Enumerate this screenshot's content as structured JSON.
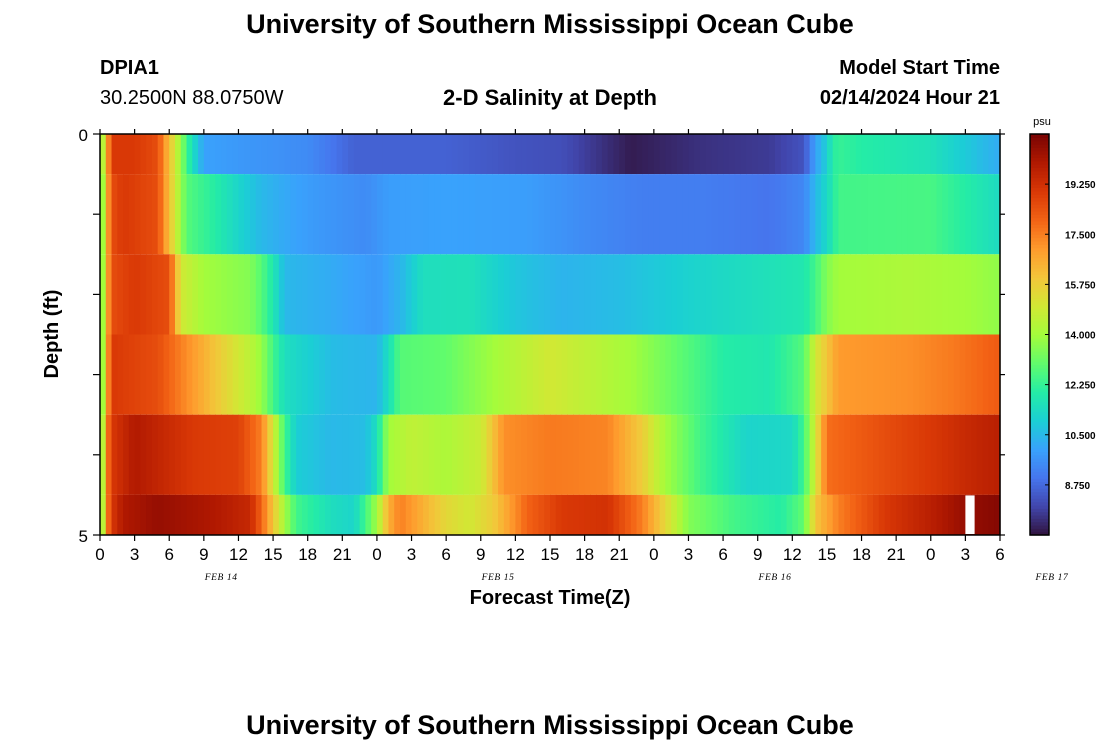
{
  "header": {
    "title": "University of Southern Mississippi Ocean Cube",
    "station": "DPIA1",
    "coords": "30.2500N  88.0750W",
    "subtitle": "2-D Salinity at Depth",
    "model_label": "Model Start Time",
    "model_time": "02/14/2024 Hour 21"
  },
  "footer": {
    "title": "University of Southern Mississippi Ocean Cube"
  },
  "chart_data": {
    "type": "heatmap",
    "title": "2-D Salinity at Depth",
    "xlabel": "Forecast Time(Z)",
    "ylabel": "Depth (ft)",
    "colorbar_unit": "psu",
    "colorbar_ticks": [
      "19.250",
      "17.500",
      "15.750",
      "14.000",
      "12.250",
      "10.500",
      "8.750"
    ],
    "colorbar_tick_values": [
      19.25,
      17.5,
      15.75,
      14.0,
      12.25,
      10.5,
      8.75
    ],
    "colorbar_range": [
      7.0,
      21.0
    ],
    "y_tick_labels": [
      "0",
      "5"
    ],
    "ylim": [
      0,
      5
    ],
    "x_tick_labels": [
      "0",
      "3",
      "6",
      "9",
      "12",
      "15",
      "18",
      "21",
      "0",
      "3",
      "6",
      "9",
      "12",
      "15",
      "18",
      "21",
      "0",
      "3",
      "6",
      "9",
      "12",
      "15",
      "18",
      "21",
      "0",
      "3",
      "6"
    ],
    "date_labels": [
      "FEB 14",
      "FEB 15",
      "FEB 16",
      "FEB 17"
    ],
    "x_hours_range": [
      0,
      78
    ],
    "colormap": [
      "#30123b",
      "#4145ab",
      "#4675ed",
      "#39a2fc",
      "#1bcfd4",
      "#24eca6",
      "#61fc6c",
      "#a4fc3b",
      "#d1e834",
      "#f3c63a",
      "#fe9b2d",
      "#f36315",
      "#d93806",
      "#b11901",
      "#7a0403"
    ],
    "rows": [
      {
        "depth_top": 0.0,
        "depth_bottom": 0.5,
        "knots": [
          [
            0,
            13
          ],
          [
            1,
            19
          ],
          [
            3,
            19
          ],
          [
            5,
            18.5
          ],
          [
            6.5,
            15
          ],
          [
            7.5,
            12.5
          ],
          [
            8,
            11.5
          ],
          [
            9,
            10
          ],
          [
            12,
            9.8
          ],
          [
            18,
            9.5
          ],
          [
            22,
            8.6
          ],
          [
            30,
            8.6
          ],
          [
            36,
            8.3
          ],
          [
            40,
            8.2
          ],
          [
            46,
            7.2
          ],
          [
            52,
            7.6
          ],
          [
            58,
            7.8
          ],
          [
            61,
            8.3
          ],
          [
            62,
            10
          ],
          [
            63,
            11
          ],
          [
            63.5,
            12
          ],
          [
            64,
            12.3
          ],
          [
            66,
            12
          ],
          [
            72,
            11.6
          ],
          [
            78,
            10.2
          ]
        ]
      },
      {
        "depth_top": 0.5,
        "depth_bottom": 1.5,
        "knots": [
          [
            0,
            12
          ],
          [
            0.5,
            16
          ],
          [
            1,
            18.5
          ],
          [
            2,
            19
          ],
          [
            5,
            18.5
          ],
          [
            6.5,
            15
          ],
          [
            7.5,
            12.8
          ],
          [
            10,
            12
          ],
          [
            12,
            11.2
          ],
          [
            14,
            10.5
          ],
          [
            17,
            10
          ],
          [
            19,
            9.8
          ],
          [
            23,
            9.5
          ],
          [
            25,
            9.9
          ],
          [
            30,
            10
          ],
          [
            37,
            9.9
          ],
          [
            42,
            9.5
          ],
          [
            47,
            9.2
          ],
          [
            52,
            9.2
          ],
          [
            58,
            9.0
          ],
          [
            61,
            9.4
          ],
          [
            62,
            10.5
          ],
          [
            63,
            11.3
          ],
          [
            64,
            12.5
          ],
          [
            72,
            12.6
          ],
          [
            76,
            11.8
          ],
          [
            78,
            11.4
          ]
        ]
      },
      {
        "depth_top": 1.5,
        "depth_bottom": 2.5,
        "knots": [
          [
            0,
            12
          ],
          [
            0.5,
            16
          ],
          [
            1,
            18.5
          ],
          [
            3,
            19
          ],
          [
            6,
            18.5
          ],
          [
            7,
            15
          ],
          [
            9,
            14
          ],
          [
            13,
            13.5
          ],
          [
            14,
            12.8
          ],
          [
            15,
            11.8
          ],
          [
            16,
            10.5
          ],
          [
            20,
            10.2
          ],
          [
            24,
            9.8
          ],
          [
            26,
            10.4
          ],
          [
            28,
            11.5
          ],
          [
            32,
            11.6
          ],
          [
            36,
            10.8
          ],
          [
            40,
            10.4
          ],
          [
            45,
            10.6
          ],
          [
            52,
            11.2
          ],
          [
            58,
            11.6
          ],
          [
            61,
            11.8
          ],
          [
            62,
            12.5
          ],
          [
            63,
            13.5
          ],
          [
            64,
            14
          ],
          [
            70,
            14.2
          ],
          [
            75,
            14
          ],
          [
            78,
            13.7
          ]
        ]
      },
      {
        "depth_top": 2.5,
        "depth_bottom": 3.5,
        "knots": [
          [
            0,
            12
          ],
          [
            0.5,
            16
          ],
          [
            1,
            19
          ],
          [
            5,
            18.5
          ],
          [
            9,
            16.5
          ],
          [
            13,
            14.5
          ],
          [
            14,
            13.8
          ],
          [
            15,
            12.5
          ],
          [
            16,
            11.5
          ],
          [
            20,
            10.6
          ],
          [
            24,
            10.4
          ],
          [
            25,
            11.5
          ],
          [
            26,
            12.8
          ],
          [
            30,
            13
          ],
          [
            35,
            14.2
          ],
          [
            39,
            15
          ],
          [
            42,
            14.6
          ],
          [
            46,
            14
          ],
          [
            50,
            13
          ],
          [
            54,
            12
          ],
          [
            58,
            11.8
          ],
          [
            61,
            12.8
          ],
          [
            62,
            15
          ],
          [
            64,
            17
          ],
          [
            70,
            17.2
          ],
          [
            74,
            17.6
          ],
          [
            78,
            18.2
          ]
        ]
      },
      {
        "depth_top": 3.5,
        "depth_bottom": 4.5,
        "knots": [
          [
            0,
            12
          ],
          [
            0.5,
            17
          ],
          [
            1,
            19
          ],
          [
            3,
            20
          ],
          [
            8,
            19
          ],
          [
            12,
            18.8
          ],
          [
            14,
            17.5
          ],
          [
            15,
            15
          ],
          [
            16,
            12.5
          ],
          [
            17,
            11
          ],
          [
            20,
            10.5
          ],
          [
            23,
            10.6
          ],
          [
            24,
            11.5
          ],
          [
            25,
            14
          ],
          [
            27,
            14.6
          ],
          [
            30,
            14.2
          ],
          [
            33,
            14.8
          ],
          [
            35,
            17.2
          ],
          [
            39,
            17.6
          ],
          [
            44,
            17.4
          ],
          [
            47,
            15.8
          ],
          [
            49,
            14
          ],
          [
            52,
            12.5
          ],
          [
            56,
            11.2
          ],
          [
            60,
            11.3
          ],
          [
            61,
            12.5
          ],
          [
            62,
            15
          ],
          [
            63,
            17.8
          ],
          [
            68,
            18.5
          ],
          [
            72,
            19
          ],
          [
            76,
            19.6
          ],
          [
            78,
            19.8
          ]
        ]
      },
      {
        "depth_top": 4.5,
        "depth_bottom": 5.0,
        "knots": [
          [
            0,
            12
          ],
          [
            0.5,
            17
          ],
          [
            1,
            19
          ],
          [
            2,
            20
          ],
          [
            5,
            20.5
          ],
          [
            10,
            20
          ],
          [
            13,
            19.5
          ],
          [
            14,
            18
          ],
          [
            15,
            16
          ],
          [
            16,
            14
          ],
          [
            17,
            12.5
          ],
          [
            20,
            11.5
          ],
          [
            22,
            11.2
          ],
          [
            23,
            12.5
          ],
          [
            24,
            14
          ],
          [
            25,
            16.5
          ],
          [
            26,
            17.5
          ],
          [
            30,
            15.5
          ],
          [
            32,
            15
          ],
          [
            34,
            15.8
          ],
          [
            37,
            18
          ],
          [
            40,
            19
          ],
          [
            44,
            19.2
          ],
          [
            47,
            17.5
          ],
          [
            49,
            15.5
          ],
          [
            51,
            13.5
          ],
          [
            55,
            12.5
          ],
          [
            59,
            12
          ],
          [
            61,
            13
          ],
          [
            62,
            16
          ],
          [
            64,
            17.5
          ],
          [
            68,
            19
          ],
          [
            72,
            19.8
          ],
          [
            75,
            20.5
          ],
          [
            78,
            20.8
          ]
        ]
      }
    ],
    "gaps": [
      {
        "row": 5,
        "hour_start": 75.0,
        "hour_end": 75.8
      }
    ]
  }
}
